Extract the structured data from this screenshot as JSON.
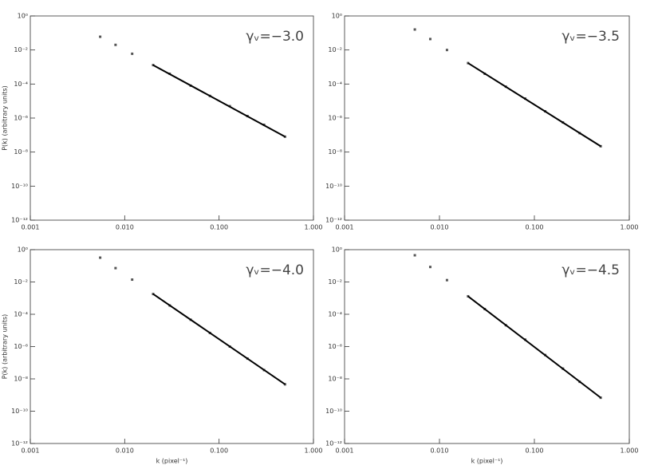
{
  "chart_data": [
    {
      "type": "scatter",
      "annotation": "γᵥ=−3.0",
      "ylabel": "P(k) (arbitrary units)",
      "color": "#555555",
      "x": [
        0.0055,
        0.008,
        0.012,
        0.02,
        0.03,
        0.05,
        0.08,
        0.13,
        0.2,
        0.3,
        0.5
      ],
      "values": [
        0.06,
        0.02,
        0.006,
        0.0013,
        0.0004,
        8e-05,
        2e-05,
        5e-06,
        1.3e-06,
        4e-07,
        8e-08
      ],
      "fit": {
        "color": "#000000",
        "x": [
          0.02,
          0.5
        ],
        "values": [
          0.0013,
          8e-08
        ]
      },
      "log_x": true,
      "log_y": true,
      "xlim": [
        0.001,
        1
      ],
      "ylim": [
        1e-12,
        1
      ],
      "xticks": [
        0.001,
        {
          "value": 0.01,
          "label": "0.010"
        },
        {
          "value": 0.1,
          "label": "0.100"
        },
        {
          "value": 1,
          "label": "1.000"
        }
      ],
      "yticks": [
        {
          "value": 1e-12,
          "label": "10⁻¹²"
        },
        {
          "value": 1e-10,
          "label": "10⁻¹⁰"
        },
        {
          "value": 1e-08,
          "label": "10⁻⁸"
        },
        {
          "value": 1e-06,
          "label": "10⁻⁶"
        },
        {
          "value": 0.0001,
          "label": "10⁻⁴"
        },
        {
          "value": 0.01,
          "label": "10⁻²"
        },
        {
          "value": 1,
          "label": "10⁰"
        }
      ]
    },
    {
      "type": "scatter",
      "annotation": "γᵥ=−3.5",
      "color": "#555555",
      "x": [
        0.0055,
        0.008,
        0.012,
        0.02,
        0.03,
        0.05,
        0.08,
        0.13,
        0.2,
        0.3,
        0.5
      ],
      "values": [
        0.16,
        0.044,
        0.01,
        0.0017,
        0.0004,
        7e-05,
        1.4e-05,
        2.5e-06,
        5.5e-07,
        1.3e-07,
        2.2e-08
      ],
      "fit": {
        "color": "#000000",
        "x": [
          0.02,
          0.5
        ],
        "values": [
          0.0017,
          2.2e-08
        ]
      },
      "log_x": true,
      "log_y": true,
      "xlim": [
        0.001,
        1
      ],
      "ylim": [
        1e-12,
        1
      ],
      "xticks": [
        0.001,
        {
          "value": 0.01,
          "label": "0.010"
        },
        {
          "value": 0.1,
          "label": "0.100"
        },
        {
          "value": 1,
          "label": "1.000"
        }
      ],
      "yticks": [
        {
          "value": 1e-12,
          "label": "10⁻¹²"
        },
        {
          "value": 1e-10,
          "label": "10⁻¹⁰"
        },
        {
          "value": 1e-08,
          "label": "10⁻⁸"
        },
        {
          "value": 1e-06,
          "label": "10⁻⁶"
        },
        {
          "value": 0.0001,
          "label": "10⁻⁴"
        },
        {
          "value": 0.01,
          "label": "10⁻²"
        },
        {
          "value": 1,
          "label": "10⁰"
        }
      ]
    },
    {
      "type": "scatter",
      "annotation": "γᵥ=−4.0",
      "ylabel": "P(k) (arbitrary units)",
      "xlabel": "k (pixel⁻¹)",
      "color": "#555555",
      "x": [
        0.0055,
        0.008,
        0.012,
        0.02,
        0.03,
        0.05,
        0.08,
        0.13,
        0.2,
        0.3,
        0.5
      ],
      "values": [
        0.32,
        0.072,
        0.014,
        0.0018,
        0.00035,
        4.6e-05,
        7e-06,
        1e-06,
        1.8e-07,
        3.5e-08,
        4.6e-09
      ],
      "fit": {
        "color": "#000000",
        "x": [
          0.02,
          0.5
        ],
        "values": [
          0.0018,
          4.6e-09
        ]
      },
      "log_x": true,
      "log_y": true,
      "xlim": [
        0.001,
        1
      ],
      "ylim": [
        1e-12,
        1
      ],
      "xticks": [
        0.001,
        {
          "value": 0.01,
          "label": "0.010"
        },
        {
          "value": 0.1,
          "label": "0.100"
        },
        {
          "value": 1,
          "label": "1.000"
        }
      ],
      "yticks": [
        {
          "value": 1e-12,
          "label": "10⁻¹²"
        },
        {
          "value": 1e-10,
          "label": "10⁻¹⁰"
        },
        {
          "value": 1e-08,
          "label": "10⁻⁸"
        },
        {
          "value": 1e-06,
          "label": "10⁻⁶"
        },
        {
          "value": 0.0001,
          "label": "10⁻⁴"
        },
        {
          "value": 0.01,
          "label": "10⁻²"
        },
        {
          "value": 1,
          "label": "10⁰"
        }
      ]
    },
    {
      "type": "scatter",
      "annotation": "γᵥ=−4.5",
      "xlabel": "k (pixel⁻¹)",
      "color": "#555555",
      "x": [
        0.0055,
        0.008,
        0.012,
        0.02,
        0.03,
        0.05,
        0.08,
        0.13,
        0.2,
        0.3,
        0.5
      ],
      "values": [
        0.45,
        0.085,
        0.013,
        0.0013,
        0.00021,
        2.1e-05,
        2.7e-06,
        3e-07,
        4.3e-08,
        6.6e-09,
        6.8e-10
      ],
      "fit": {
        "color": "#000000",
        "x": [
          0.02,
          0.5
        ],
        "values": [
          0.0013,
          6.8e-10
        ]
      },
      "log_x": true,
      "log_y": true,
      "xlim": [
        0.001,
        1
      ],
      "ylim": [
        1e-12,
        1
      ],
      "xticks": [
        0.001,
        {
          "value": 0.01,
          "label": "0.010"
        },
        {
          "value": 0.1,
          "label": "0.100"
        },
        {
          "value": 1,
          "label": "1.000"
        }
      ],
      "yticks": [
        {
          "value": 1e-12,
          "label": "10⁻¹²"
        },
        {
          "value": 1e-10,
          "label": "10⁻¹⁰"
        },
        {
          "value": 1e-08,
          "label": "10⁻⁸"
        },
        {
          "value": 1e-06,
          "label": "10⁻⁶"
        },
        {
          "value": 0.0001,
          "label": "10⁻⁴"
        },
        {
          "value": 0.01,
          "label": "10⁻²"
        },
        {
          "value": 1,
          "label": "10⁰"
        }
      ]
    }
  ]
}
